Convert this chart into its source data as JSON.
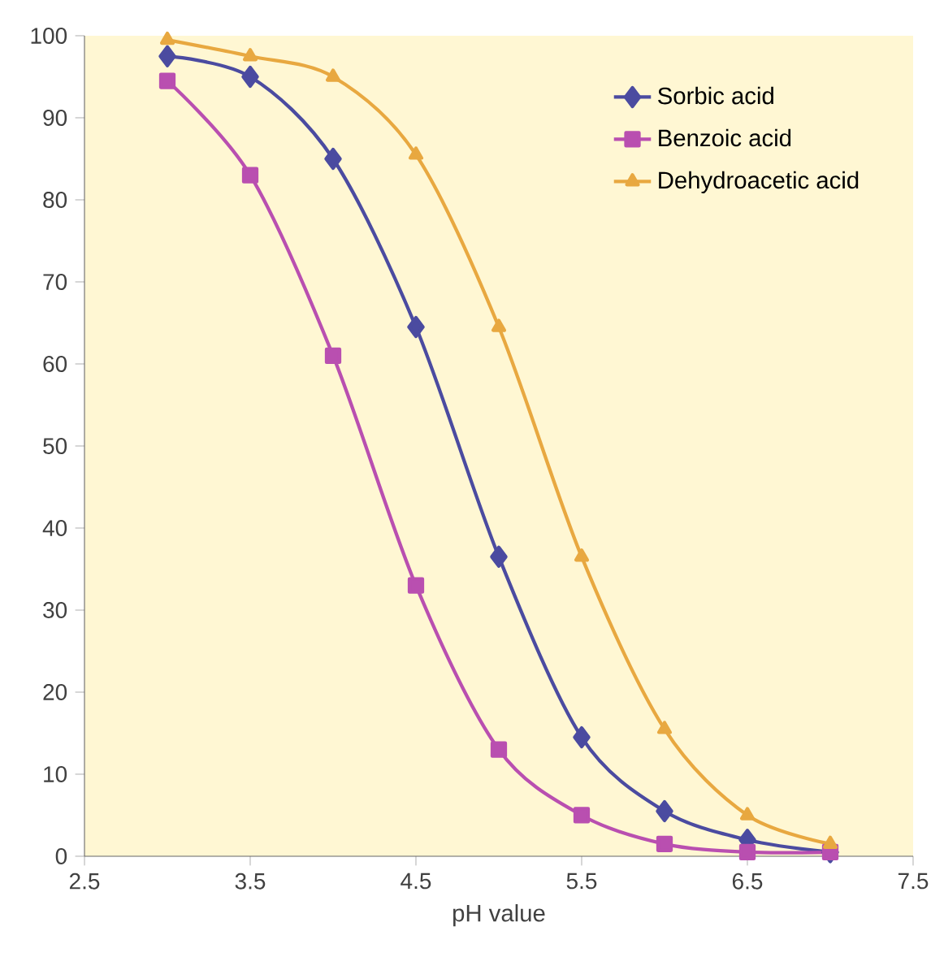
{
  "chart_data": {
    "type": "line",
    "xlabel": "pH value",
    "xlim": [
      2.5,
      7.5
    ],
    "xticks": [
      2.5,
      3.5,
      4.5,
      5.5,
      6.5,
      7.5
    ],
    "ylim": [
      0,
      100
    ],
    "yticks": [
      0,
      10,
      20,
      30,
      40,
      50,
      60,
      70,
      80,
      90,
      100
    ],
    "x": [
      3.0,
      3.5,
      4.0,
      4.5,
      5.0,
      5.5,
      6.0,
      6.5,
      7.0
    ],
    "legend": "top right",
    "grid": false,
    "series": [
      {
        "name": "Sorbic acid",
        "color": "#4b4ba0",
        "marker": "diamond",
        "values": [
          97.5,
          95,
          85,
          64.5,
          36.5,
          14.5,
          5.5,
          2,
          0.5
        ]
      },
      {
        "name": "Benzoic acid",
        "color": "#b94fb0",
        "marker": "square",
        "values": [
          94.5,
          83,
          61,
          33,
          13,
          5,
          1.5,
          0.5,
          0.5
        ]
      },
      {
        "name": "Dehydroacetic acid",
        "color": "#e8a840",
        "marker": "triangle",
        "values": [
          99.5,
          97.5,
          95,
          85.5,
          64.5,
          36.5,
          15.5,
          5,
          1.5
        ]
      }
    ]
  }
}
